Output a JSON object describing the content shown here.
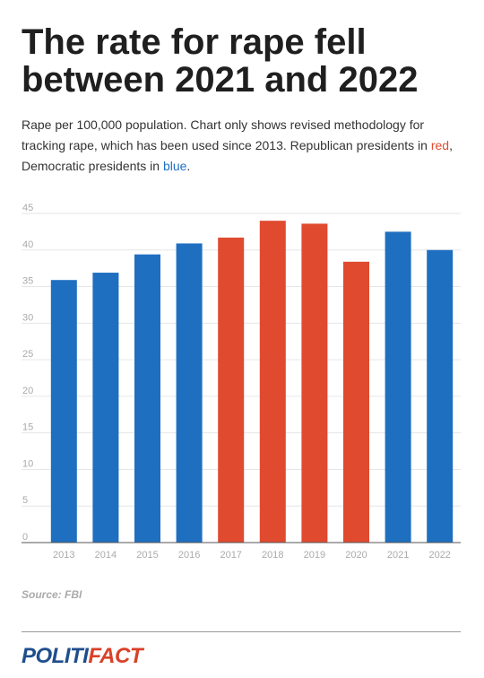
{
  "header": {
    "title": "The rate for rape fell between 2021 and 2022",
    "subtitle_main": "Rape per 100,000 population. Chart only shows revised methodology for tracking rape, which has been used since 2013. Republican presidents in ",
    "subtitle_red": "red",
    "subtitle_mid": ", Democratic presidents in ",
    "subtitle_blue": "blue",
    "subtitle_end": "."
  },
  "source": "Source: FBI",
  "logo": {
    "part1": "POLITI",
    "part2": "FACT"
  },
  "colors": {
    "democratic": "#1f6fc0",
    "republican": "#e04a2f",
    "grid": "#e6e6e6",
    "tick": "#aaaaaa"
  },
  "chart_data": {
    "type": "bar",
    "title": "The rate for rape fell between 2021 and 2022",
    "categories": [
      "2013",
      "2014",
      "2015",
      "2016",
      "2017",
      "2018",
      "2019",
      "2020",
      "2021",
      "2022"
    ],
    "values": [
      35.9,
      36.9,
      39.4,
      40.9,
      41.7,
      44.0,
      43.6,
      38.4,
      42.5,
      40.0
    ],
    "party": [
      "democratic",
      "democratic",
      "democratic",
      "democratic",
      "republican",
      "republican",
      "republican",
      "republican",
      "democratic",
      "democratic"
    ],
    "yticks": [
      0,
      5,
      10,
      15,
      20,
      25,
      30,
      35,
      40,
      45
    ],
    "ylim": [
      0,
      45
    ],
    "xlabel": "",
    "ylabel": "",
    "grid": true
  }
}
